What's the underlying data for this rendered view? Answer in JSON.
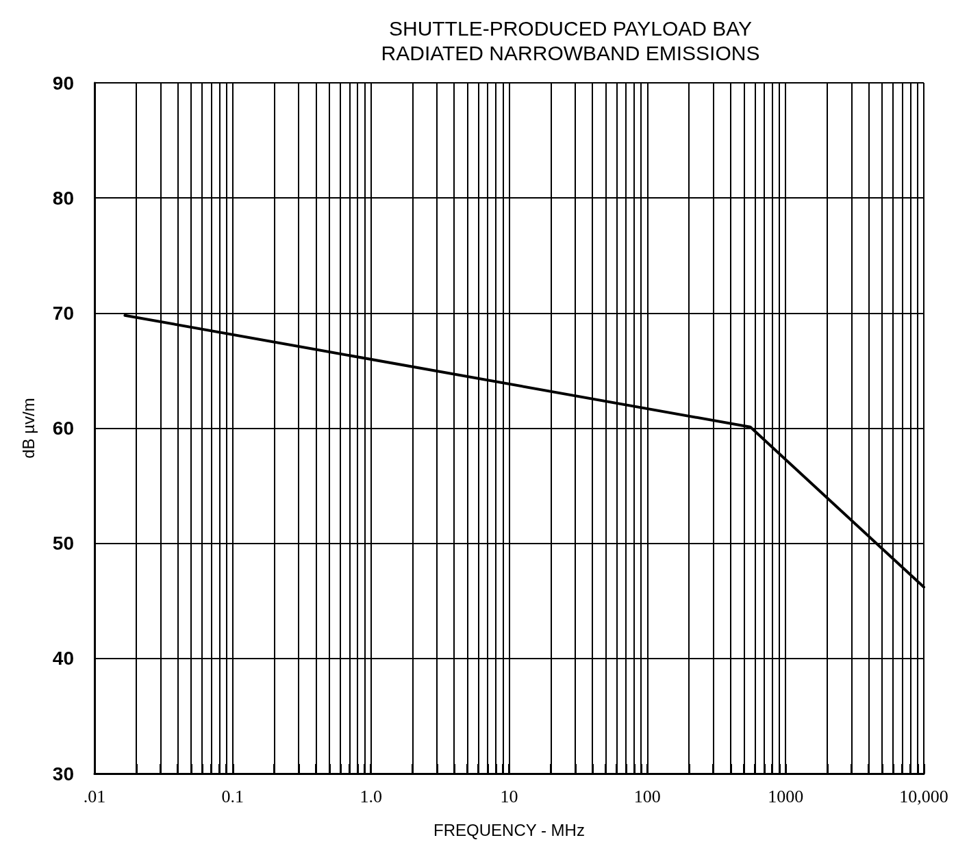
{
  "chart_data": {
    "type": "line",
    "title": "SHUTTLE-PRODUCED PAYLOAD BAY\nRADIATED NARROWBAND EMISSIONS",
    "xlabel": "FREQUENCY - MHz",
    "ylabel": "dB µv/m",
    "x": [
      0.0166,
      556,
      10000
    ],
    "series": [
      {
        "color": "#000000",
        "values": [
          69.8,
          60.1,
          46.2
        ]
      }
    ],
    "log": "x",
    "xlim": [
      0.01,
      10000
    ],
    "ylim": [
      30,
      90
    ],
    "xticks": [
      {
        "value": 0.01,
        "label": ".01"
      },
      {
        "value": 0.02,
        "label": null
      },
      {
        "value": 0.03,
        "label": null
      },
      {
        "value": 0.04,
        "label": null
      },
      {
        "value": 0.05,
        "label": null
      },
      {
        "value": 0.06,
        "label": null
      },
      {
        "value": 0.07,
        "label": null
      },
      {
        "value": 0.08,
        "label": null
      },
      {
        "value": 0.09,
        "label": null
      },
      {
        "value": 0.1,
        "label": "0.1"
      },
      {
        "value": 0.2,
        "label": null
      },
      {
        "value": 0.3,
        "label": null
      },
      {
        "value": 0.4,
        "label": null
      },
      {
        "value": 0.5,
        "label": null
      },
      {
        "value": 0.6,
        "label": null
      },
      {
        "value": 0.7,
        "label": null
      },
      {
        "value": 0.8,
        "label": null
      },
      {
        "value": 0.9,
        "label": null
      },
      {
        "value": 1,
        "label": "1.0"
      },
      {
        "value": 2,
        "label": null
      },
      {
        "value": 3,
        "label": null
      },
      {
        "value": 4,
        "label": null
      },
      {
        "value": 5,
        "label": null
      },
      {
        "value": 6,
        "label": null
      },
      {
        "value": 7,
        "label": null
      },
      {
        "value": 8,
        "label": null
      },
      {
        "value": 9,
        "label": null
      },
      {
        "value": 10,
        "label": "10"
      },
      {
        "value": 20,
        "label": null
      },
      {
        "value": 30,
        "label": null
      },
      {
        "value": 40,
        "label": null
      },
      {
        "value": 50,
        "label": null
      },
      {
        "value": 60,
        "label": null
      },
      {
        "value": 70,
        "label": null
      },
      {
        "value": 80,
        "label": null
      },
      {
        "value": 90,
        "label": null
      },
      {
        "value": 100,
        "label": "100"
      },
      {
        "value": 200,
        "label": null
      },
      {
        "value": 300,
        "label": null
      },
      {
        "value": 400,
        "label": null
      },
      {
        "value": 500,
        "label": null
      },
      {
        "value": 600,
        "label": null
      },
      {
        "value": 700,
        "label": null
      },
      {
        "value": 800,
        "label": null
      },
      {
        "value": 900,
        "label": null
      },
      {
        "value": 1000,
        "label": "1000"
      },
      {
        "value": 2000,
        "label": null
      },
      {
        "value": 3000,
        "label": null
      },
      {
        "value": 4000,
        "label": null
      },
      {
        "value": 5000,
        "label": null
      },
      {
        "value": 6000,
        "label": null
      },
      {
        "value": 7000,
        "label": null
      },
      {
        "value": 8000,
        "label": null
      },
      {
        "value": 9000,
        "label": null
      },
      {
        "value": 10000,
        "label": "10,000"
      }
    ],
    "yticks": [
      30,
      40,
      50,
      60,
      70,
      80,
      90
    ],
    "grid": true,
    "marker": "none",
    "line_style": "solid"
  }
}
